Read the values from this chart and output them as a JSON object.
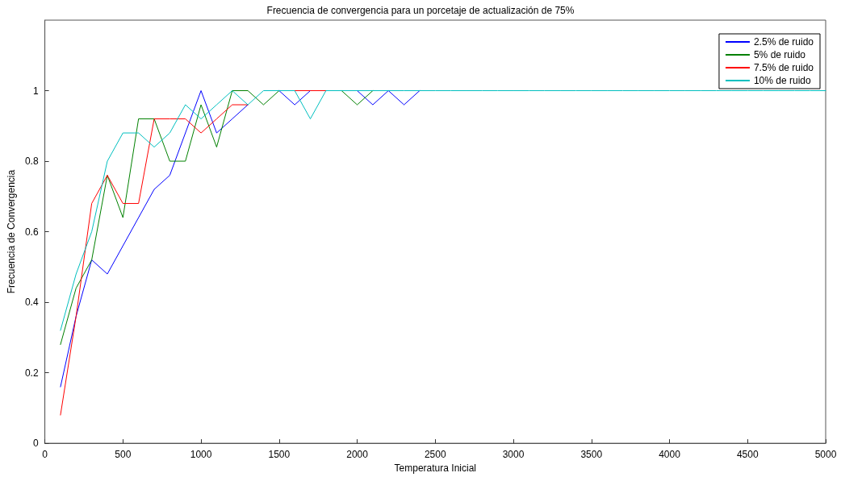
{
  "chart_data": {
    "type": "line",
    "title": "Frecuencia de convergencia para un porcetaje de actualización de 75%",
    "xlabel": "Temperatura Inicial",
    "ylabel": "Frecuencia de Convergencia",
    "x": [
      100,
      200,
      300,
      400,
      500,
      600,
      700,
      800,
      900,
      1000,
      1100,
      1200,
      1300,
      1400,
      1500,
      1600,
      1700,
      1800,
      1900,
      2000,
      2100,
      2200,
      2300,
      2400,
      2500,
      2600,
      2700,
      2800,
      2900,
      3000,
      3100,
      3200,
      3300,
      3400,
      3500,
      3600,
      3700,
      3800,
      3900,
      4000,
      4100,
      4200,
      4300,
      4400,
      4500,
      4600,
      4700,
      4800,
      4900,
      5000
    ],
    "series": [
      {
        "name": "2.5% de ruido",
        "color": "#0000ff",
        "values": [
          0.16,
          0.36,
          0.52,
          0.48,
          0.56,
          0.64,
          0.72,
          0.76,
          0.88,
          1,
          0.88,
          0.92,
          0.96,
          null,
          1,
          0.96,
          1,
          null,
          null,
          1,
          0.96,
          1,
          0.96,
          1,
          null,
          null,
          null,
          null,
          null,
          null,
          null,
          null,
          null,
          null,
          null,
          null,
          null,
          null,
          null,
          null,
          null,
          null,
          null,
          null,
          null,
          null,
          null,
          null,
          null,
          null
        ]
      },
      {
        "name": "5% de ruido",
        "color": "#008000",
        "values": [
          0.28,
          0.44,
          0.52,
          0.76,
          0.64,
          0.92,
          0.92,
          0.8,
          0.8,
          0.96,
          0.84,
          1,
          1,
          0.96,
          1,
          null,
          null,
          null,
          1,
          0.96,
          1,
          null,
          null,
          null,
          null,
          null,
          null,
          null,
          null,
          null,
          null,
          null,
          null,
          null,
          null,
          null,
          null,
          null,
          null,
          null,
          null,
          null,
          null,
          null,
          null,
          null,
          null,
          null,
          null,
          null
        ]
      },
      {
        "name": "7.5% de ruido",
        "color": "#ff0000",
        "values": [
          0.08,
          0.36,
          0.68,
          0.76,
          0.68,
          0.68,
          0.92,
          0.92,
          0.92,
          0.88,
          0.92,
          0.96,
          0.96,
          null,
          null,
          1,
          1,
          1,
          null,
          null,
          null,
          null,
          null,
          null,
          null,
          null,
          null,
          null,
          null,
          null,
          null,
          null,
          null,
          null,
          null,
          null,
          null,
          null,
          null,
          null,
          null,
          null,
          null,
          null,
          null,
          null,
          null,
          null,
          null,
          null
        ]
      },
      {
        "name": "10% de ruido",
        "color": "#00bfbf",
        "values": [
          0.32,
          0.48,
          0.6,
          0.8,
          0.88,
          0.88,
          0.84,
          0.88,
          0.96,
          0.92,
          0.96,
          1,
          0.96,
          1,
          1,
          1,
          0.92,
          1,
          1,
          1,
          1,
          1,
          1,
          1,
          1,
          1,
          1,
          1,
          1,
          1,
          1,
          1,
          1,
          1,
          1,
          1,
          1,
          1,
          1,
          1,
          1,
          1,
          1,
          1,
          1,
          1,
          1,
          1,
          1,
          1
        ]
      }
    ],
    "xlim": [
      0,
      5000
    ],
    "xticks": [
      0,
      500,
      1000,
      1500,
      2000,
      2500,
      3000,
      3500,
      4000,
      4500,
      5000
    ],
    "ylim": [
      0,
      1.2
    ],
    "yticks": [
      0,
      0.2,
      0.4,
      0.6,
      0.8,
      1
    ],
    "grid": false,
    "legend": "top right",
    "marker": "none",
    "line_style": "solid"
  }
}
